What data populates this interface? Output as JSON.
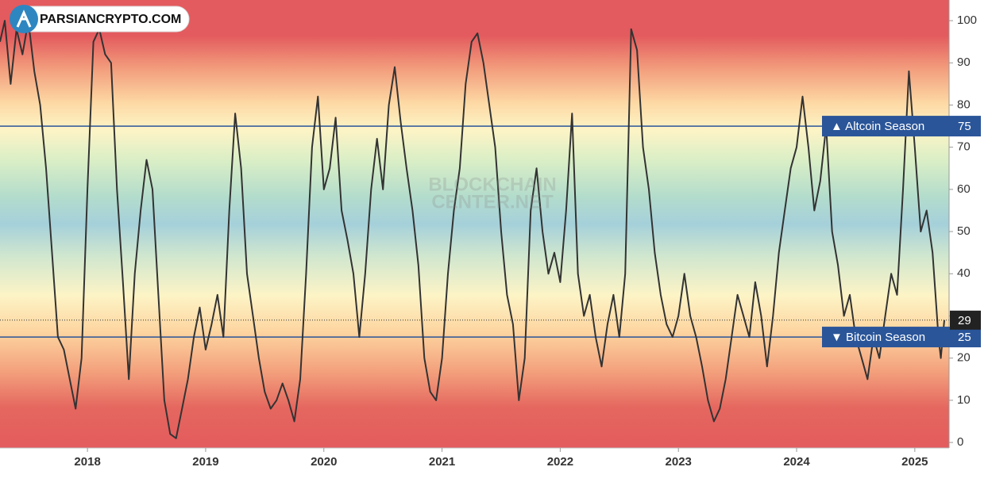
{
  "chart_data": {
    "type": "line",
    "logo": "PARSIANCRYPTO.COM",
    "watermark": [
      "BLOCKCHAIN",
      "CENTER.NET"
    ],
    "color": "#333333",
    "xlim": [
      2017.26,
      2025.29
    ],
    "ylim": [
      -1.3,
      104.9
    ],
    "xticks": [
      2018,
      2019,
      2020,
      2021,
      2022,
      2023,
      2024,
      2025
    ],
    "yticks": [
      0,
      10,
      20,
      30,
      40,
      50,
      60,
      70,
      80,
      90,
      100
    ],
    "thresholds": [
      {
        "label": "▲ Altcoin Season",
        "value": 75,
        "color": "#2a5599"
      },
      {
        "label": "▼ Bitcoin Season",
        "value": 25,
        "color": "#2a5599"
      }
    ],
    "current": 29,
    "x": [
      2017.26,
      2017.3,
      2017.35,
      2017.4,
      2017.45,
      2017.5,
      2017.55,
      2017.6,
      2017.65,
      2017.7,
      2017.75,
      2017.8,
      2017.85,
      2017.9,
      2017.95,
      2018.0,
      2018.05,
      2018.1,
      2018.15,
      2018.2,
      2018.25,
      2018.3,
      2018.35,
      2018.4,
      2018.45,
      2018.5,
      2018.55,
      2018.6,
      2018.65,
      2018.7,
      2018.75,
      2018.8,
      2018.85,
      2018.9,
      2018.95,
      2019.0,
      2019.05,
      2019.1,
      2019.15,
      2019.2,
      2019.25,
      2019.3,
      2019.35,
      2019.4,
      2019.45,
      2019.5,
      2019.55,
      2019.6,
      2019.65,
      2019.7,
      2019.75,
      2019.8,
      2019.85,
      2019.9,
      2019.95,
      2020.0,
      2020.05,
      2020.1,
      2020.15,
      2020.2,
      2020.25,
      2020.3,
      2020.35,
      2020.4,
      2020.45,
      2020.5,
      2020.55,
      2020.6,
      2020.65,
      2020.7,
      2020.75,
      2020.8,
      2020.85,
      2020.9,
      2020.95,
      2021.0,
      2021.05,
      2021.1,
      2021.15,
      2021.2,
      2021.25,
      2021.3,
      2021.35,
      2021.4,
      2021.45,
      2021.5,
      2021.55,
      2021.6,
      2021.65,
      2021.7,
      2021.75,
      2021.8,
      2021.85,
      2021.9,
      2021.95,
      2022.0,
      2022.05,
      2022.1,
      2022.15,
      2022.2,
      2022.25,
      2022.3,
      2022.35,
      2022.4,
      2022.45,
      2022.5,
      2022.55,
      2022.6,
      2022.65,
      2022.7,
      2022.75,
      2022.8,
      2022.85,
      2022.9,
      2022.95,
      2023.0,
      2023.05,
      2023.1,
      2023.15,
      2023.2,
      2023.25,
      2023.3,
      2023.35,
      2023.4,
      2023.45,
      2023.5,
      2023.55,
      2023.6,
      2023.65,
      2023.7,
      2023.75,
      2023.8,
      2023.85,
      2023.9,
      2023.95,
      2024.0,
      2024.05,
      2024.1,
      2024.15,
      2024.2,
      2024.25,
      2024.3,
      2024.35,
      2024.4,
      2024.45,
      2024.5,
      2024.55,
      2024.6,
      2024.65,
      2024.7,
      2024.75,
      2024.8,
      2024.85,
      2024.9,
      2024.95,
      2025.0,
      2025.05,
      2025.1,
      2025.15,
      2025.2,
      2025.22,
      2025.25
    ],
    "values": [
      95,
      100,
      85,
      98,
      92,
      100,
      88,
      80,
      65,
      45,
      25,
      22,
      15,
      8,
      20,
      60,
      95,
      98,
      92,
      90,
      60,
      38,
      15,
      40,
      55,
      67,
      60,
      35,
      10,
      2,
      1,
      8,
      15,
      25,
      32,
      22,
      28,
      35,
      25,
      55,
      78,
      65,
      40,
      30,
      20,
      12,
      8,
      10,
      14,
      10,
      5,
      15,
      40,
      70,
      82,
      60,
      65,
      77,
      55,
      48,
      40,
      25,
      40,
      60,
      72,
      60,
      80,
      89,
      76,
      65,
      55,
      42,
      20,
      12,
      10,
      20,
      40,
      55,
      65,
      85,
      95,
      97,
      90,
      80,
      70,
      50,
      35,
      28,
      10,
      20,
      55,
      65,
      50,
      40,
      45,
      38,
      55,
      78,
      40,
      30,
      35,
      25,
      18,
      28,
      35,
      25,
      40,
      98,
      93,
      70,
      60,
      45,
      35,
      28,
      25,
      30,
      40,
      30,
      25,
      18,
      10,
      5,
      8,
      15,
      25,
      35,
      30,
      25,
      38,
      30,
      18,
      30,
      45,
      55,
      65,
      70,
      82,
      70,
      55,
      62,
      75,
      50,
      42,
      30,
      35,
      25,
      20,
      15,
      25,
      20,
      30,
      40,
      35,
      60,
      88,
      70,
      50,
      55,
      45,
      25,
      20,
      29
    ]
  }
}
